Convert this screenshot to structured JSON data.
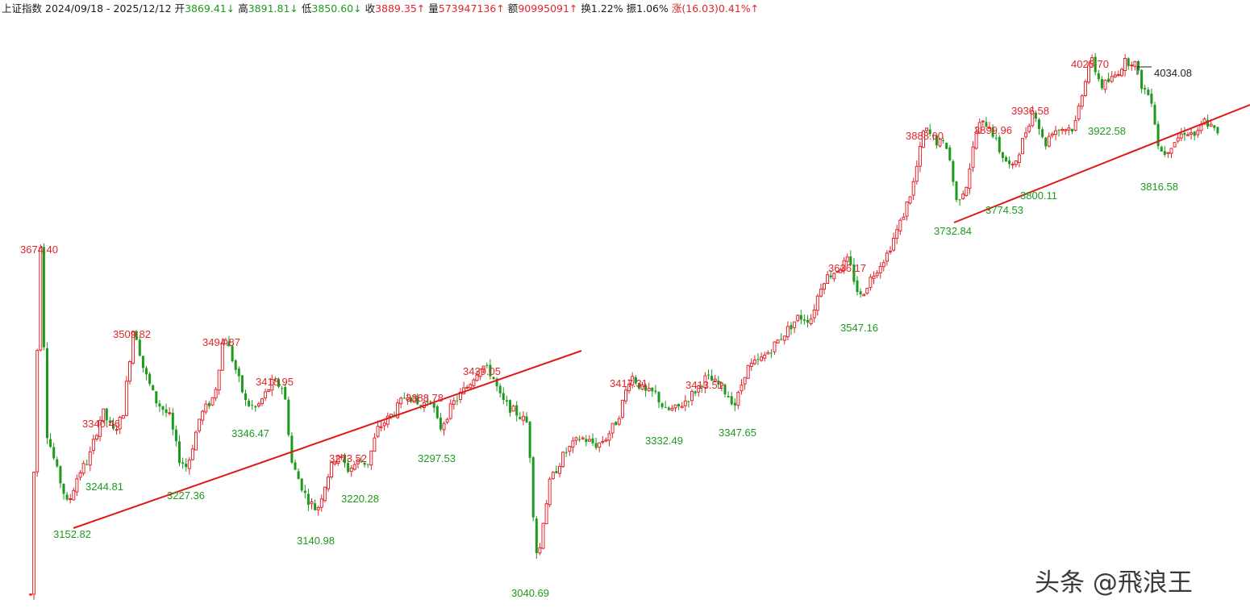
{
  "header": {
    "index_name": "上证指数",
    "date_range": "2024/09/18 - 2025/12/12",
    "open_label": "开",
    "open_value": "3869.41↓",
    "high_label": "高",
    "high_value": "3891.81↓",
    "low_label": "低",
    "low_value": "3850.60↓",
    "close_label": "收",
    "close_value": "3889.35↑",
    "volume_label": "量",
    "volume_value": "573947136↑",
    "amount_label": "额",
    "amount_value": "90995091↑",
    "turnover_label": "换",
    "turnover_value": "1.22%",
    "amplitude_label": "振",
    "amplitude_value": "1.06%",
    "change_label": "涨",
    "change_value": "(16.03)0.41%↑"
  },
  "watermark": "头条 @飛浪王",
  "colors": {
    "up": "#e3242b",
    "down": "#1c9a1c",
    "text_dark": "#1a1a1a",
    "trendline": "#e01818"
  },
  "chart_data": {
    "type": "candlestick",
    "x_range": [
      "2024/09/18",
      "2025/12/12"
    ],
    "y_range": [
      2960,
      4060
    ],
    "grid": false,
    "legend": "none",
    "high_labels": [
      "3674.40",
      "3509.82",
      "3494.87",
      "3340.46",
      "3418.95",
      "3273.52",
      "3388.78",
      "3439.05",
      "3417.31",
      "3413.51",
      "3636.17",
      "3888.60",
      "3899.96",
      "3936.58",
      "4025.70"
    ],
    "low_labels": [
      "3152.82",
      "3244.81",
      "3227.36",
      "3346.47",
      "3140.98",
      "3220.28",
      "3297.53",
      "3040.69",
      "3332.49",
      "3347.65",
      "3547.16",
      "3732.84",
      "3774.53",
      "3800.11",
      "3922.58",
      "3816.58"
    ],
    "marker_label": "4034.08",
    "trendlines": [
      {
        "from": {
          "x": "3152.82 low",
          "y": 3152.82
        },
        "to": {
          "x": "upper-left extension",
          "y": 3470
        }
      },
      {
        "from": {
          "x": "3732.84 low",
          "y": 3732.84
        },
        "to": {
          "x": "right edge",
          "y": 3968
        }
      }
    ]
  }
}
